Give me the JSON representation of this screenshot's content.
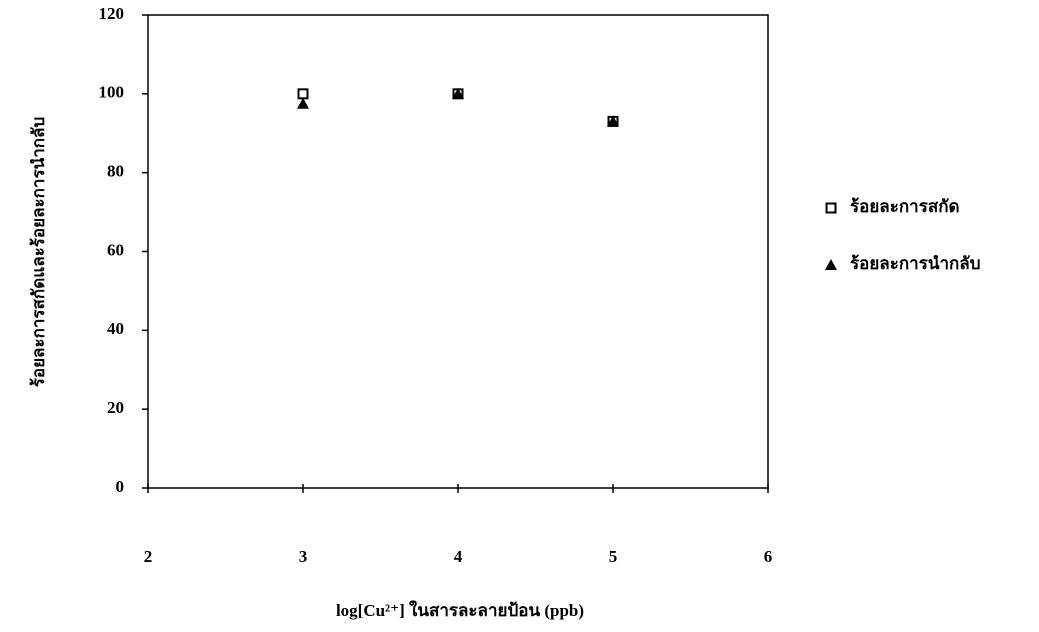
{
  "chart_data": {
    "type": "scatter",
    "xlabel": "log[Cu²⁺] ในสารละลายป้อน (ppb)",
    "ylabel": "ร้อยละการสกัดและร้อยละการนำกลับ",
    "xlim": [
      2,
      6
    ],
    "xticks": [
      2,
      3,
      4,
      5,
      6
    ],
    "ylim": [
      0,
      120
    ],
    "yticks": [
      0,
      20,
      40,
      60,
      80,
      100,
      120
    ],
    "legend": "right",
    "series": [
      {
        "name": "ร้อยละการสกัด",
        "color": "#000000",
        "marker": "open-square",
        "x": [
          3,
          4,
          5
        ],
        "values": [
          100,
          100,
          93
        ]
      },
      {
        "name": "ร้อยละการนำกลับ",
        "color": "#000000",
        "marker": "triangle",
        "x": [
          3,
          4,
          5
        ],
        "values": [
          97.5,
          100,
          93
        ]
      }
    ]
  }
}
